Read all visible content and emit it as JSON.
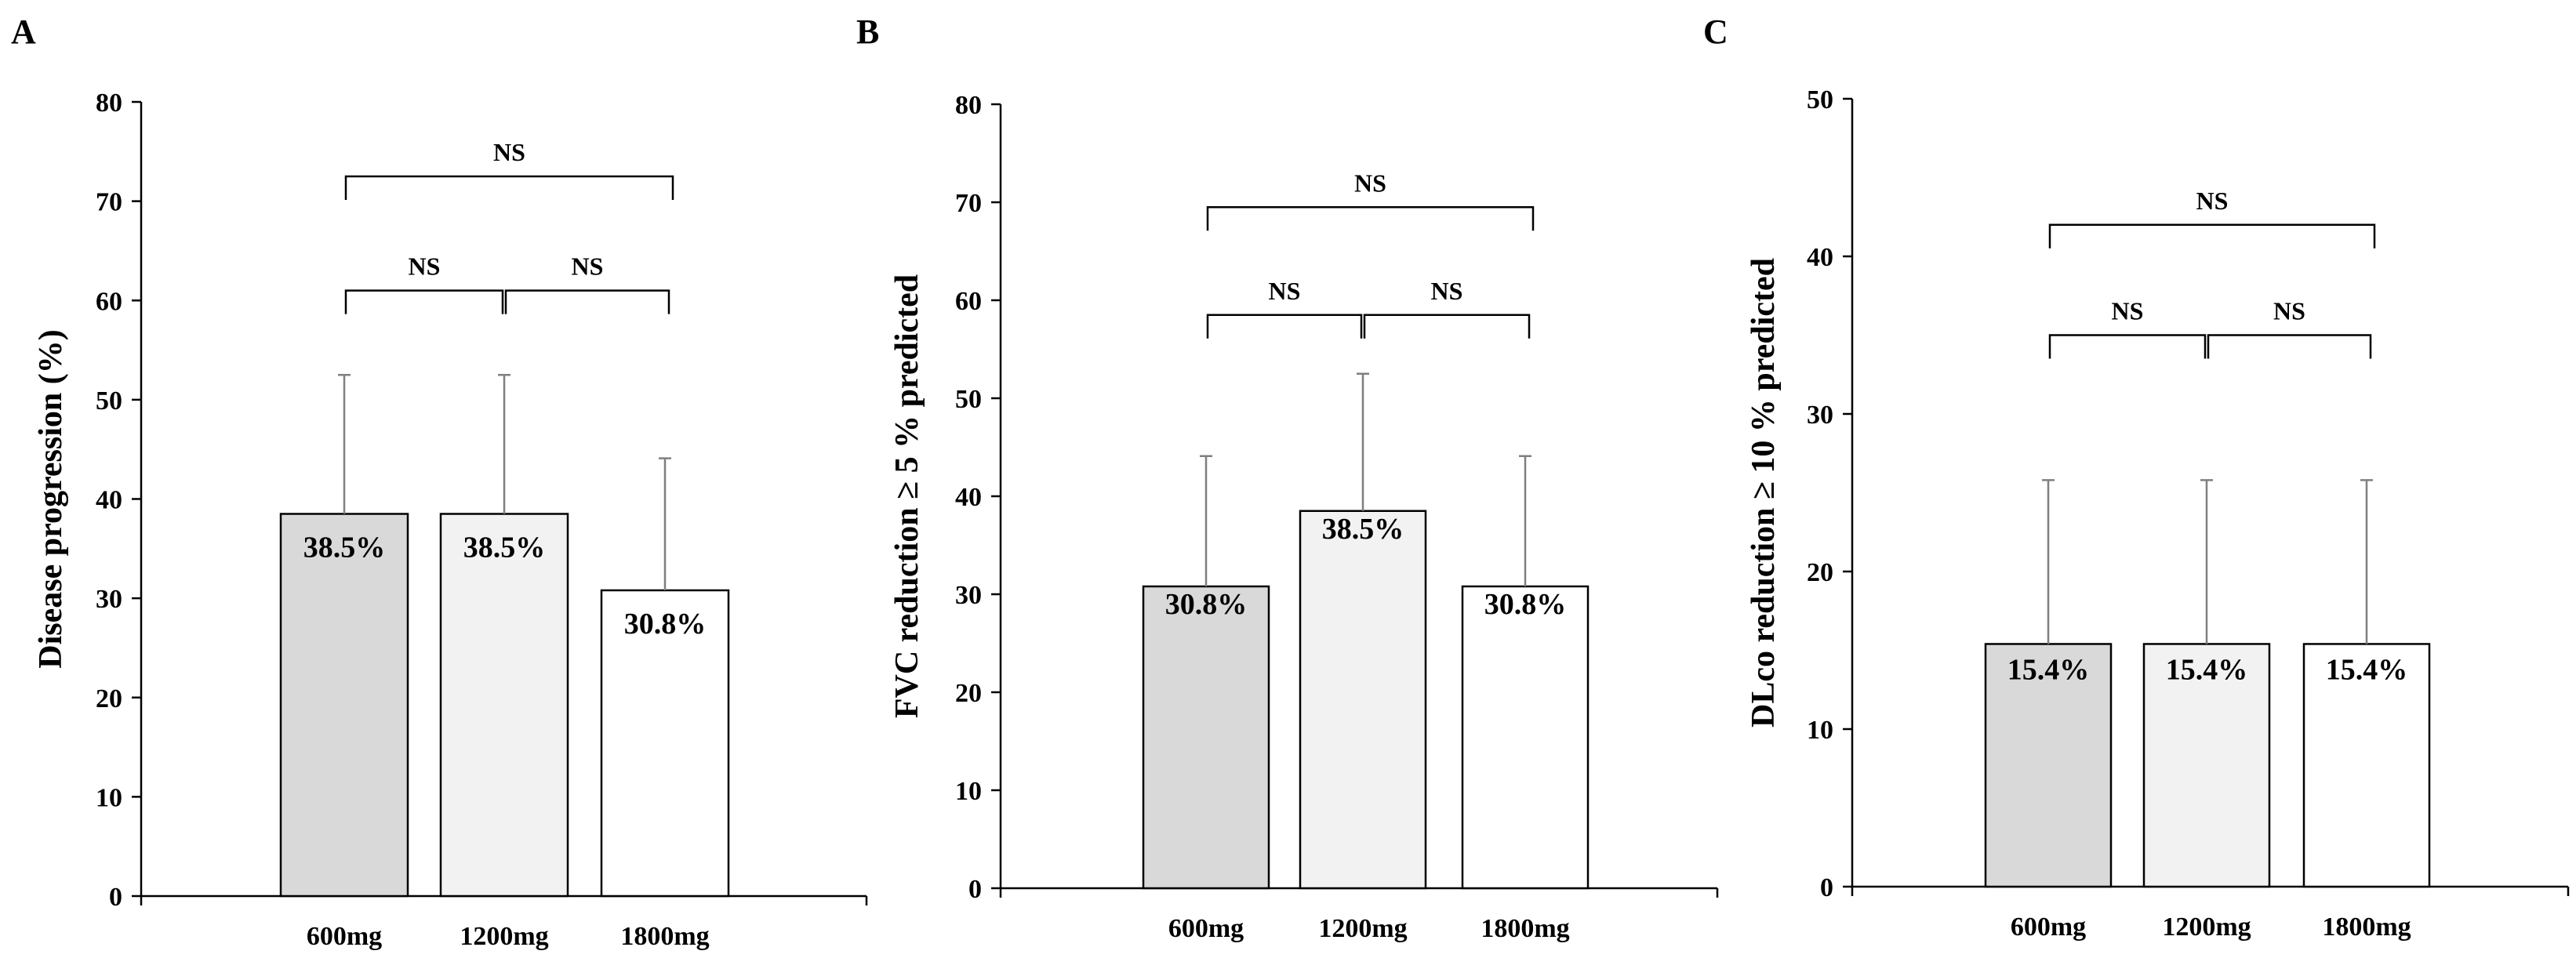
{
  "chart_data": [
    {
      "panel": "A",
      "type": "bar",
      "title": "",
      "xlabel": "",
      "ylabel": "Disease progression (%)",
      "ylim": [
        0,
        80
      ],
      "yticks": [
        "0",
        "10",
        "20",
        "30",
        "40",
        "50",
        "60",
        "70",
        "80"
      ],
      "categories": [
        "600mg",
        "1200mg",
        "1800mg"
      ],
      "values": [
        38.5,
        38.5,
        30.8
      ],
      "error_upper": [
        52.5,
        52.5,
        44.1
      ],
      "bar_labels": [
        "38.5%",
        "38.5%",
        "30.8%"
      ],
      "bar_colors": [
        "#d9d9d9",
        "#f2f2f2",
        "#ffffff"
      ],
      "comparisons": [
        {
          "from": 0,
          "to": 1,
          "label": "NS",
          "y": 61
        },
        {
          "from": 1,
          "to": 2,
          "label": "NS",
          "y": 61
        },
        {
          "from": 0,
          "to": 2,
          "label": "NS",
          "y": 72.5
        }
      ]
    },
    {
      "panel": "B",
      "type": "bar",
      "title": "",
      "xlabel": "",
      "ylabel": "FVC reduction ≥ 5 % predicted",
      "ylim": [
        0,
        80
      ],
      "yticks": [
        "0",
        "10",
        "20",
        "30",
        "40",
        "50",
        "60",
        "70",
        "80"
      ],
      "categories": [
        "600mg",
        "1200mg",
        "1800mg"
      ],
      "values": [
        30.8,
        38.5,
        30.8
      ],
      "error_upper": [
        44.1,
        52.5,
        44.1
      ],
      "bar_labels": [
        "30.8%",
        "38.5%",
        "30.8%"
      ],
      "bar_colors": [
        "#d9d9d9",
        "#f2f2f2",
        "#ffffff"
      ],
      "comparisons": [
        {
          "from": 0,
          "to": 1,
          "label": "NS",
          "y": 58.5
        },
        {
          "from": 1,
          "to": 2,
          "label": "NS",
          "y": 58.5
        },
        {
          "from": 0,
          "to": 2,
          "label": "NS",
          "y": 69.5
        }
      ]
    },
    {
      "panel": "C",
      "type": "bar",
      "title": "",
      "xlabel": "",
      "ylabel": "DLco reduction ≥ 10 % predicted",
      "ylim": [
        0,
        50
      ],
      "yticks": [
        "0",
        "10",
        "20",
        "30",
        "40",
        "50"
      ],
      "categories": [
        "600mg",
        "1200mg",
        "1800mg"
      ],
      "values": [
        15.4,
        15.4,
        15.4
      ],
      "error_upper": [
        25.8,
        25.8,
        25.8
      ],
      "bar_labels": [
        "15.4%",
        "15.4%",
        "15.4%"
      ],
      "bar_colors": [
        "#d9d9d9",
        "#f2f2f2",
        "#ffffff"
      ],
      "comparisons": [
        {
          "from": 0,
          "to": 1,
          "label": "NS",
          "y": 35
        },
        {
          "from": 1,
          "to": 2,
          "label": "NS",
          "y": 35
        },
        {
          "from": 0,
          "to": 2,
          "label": "NS",
          "y": 42
        }
      ]
    }
  ]
}
